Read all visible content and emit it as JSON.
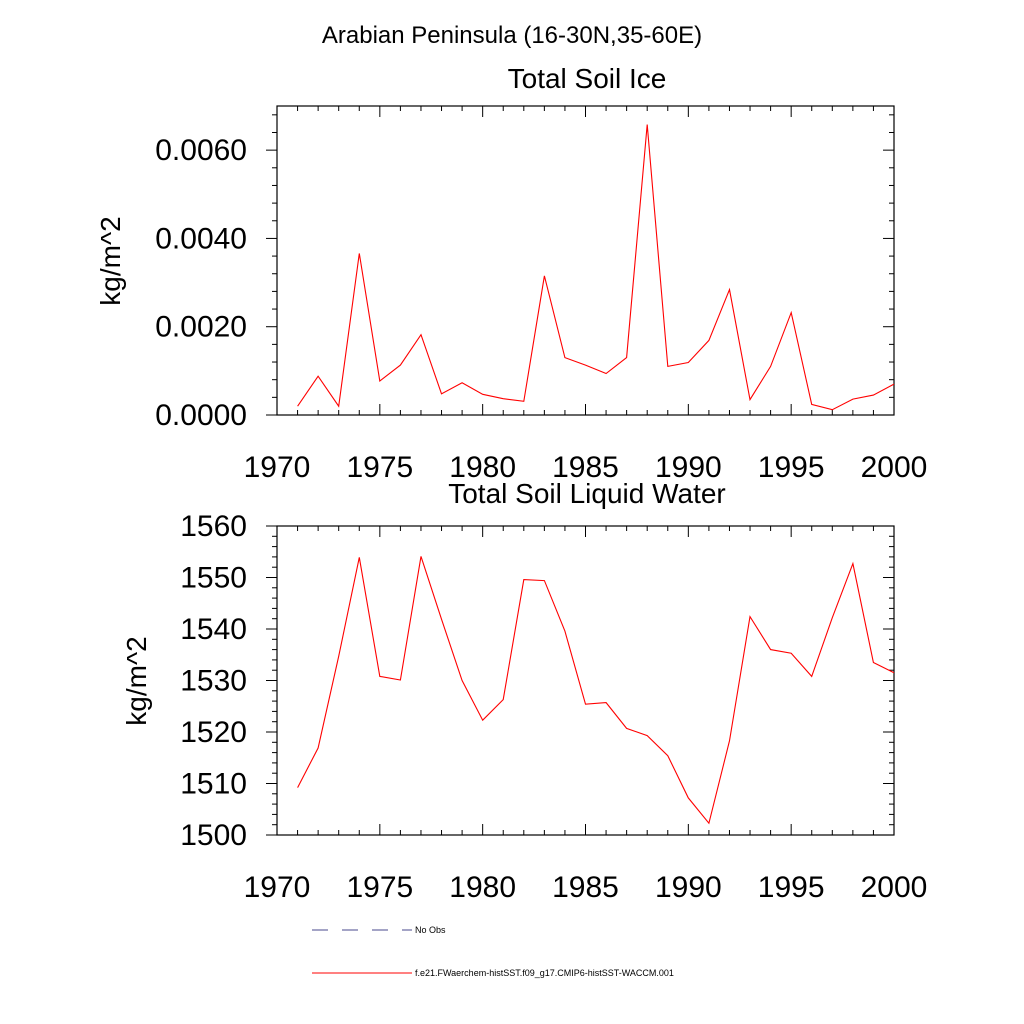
{
  "figure": {
    "title": "Arabian Peninsula (16-30N,35-60E)"
  },
  "chart_data": [
    {
      "type": "line",
      "title": "Total Soil Ice",
      "xlabel": "",
      "ylabel": "kg/m^2",
      "xlim": [
        1970,
        2000
      ],
      "ylim": [
        0.0,
        0.007
      ],
      "x_ticks": [
        1970,
        1975,
        1980,
        1985,
        1990,
        1995,
        2000
      ],
      "x_tick_labels": [
        "1970",
        "1975",
        "1980",
        "1985",
        "1990",
        "1995",
        "2000"
      ],
      "y_ticks": [
        0.0,
        0.002,
        0.004,
        0.006
      ],
      "y_tick_labels": [
        "0.0000",
        "0.0020",
        "0.0040",
        "0.0060"
      ],
      "grid": false,
      "series": [
        {
          "name": "f.e21.FWaerchem-histSST.f09_g17.CMIP6-histSST-WACCM.001",
          "color": "#ff0000",
          "x": [
            1971,
            1972,
            1973,
            1974,
            1975,
            1976,
            1977,
            1978,
            1979,
            1980,
            1981,
            1982,
            1983,
            1984,
            1985,
            1986,
            1987,
            1988,
            1989,
            1990,
            1991,
            1992,
            1993,
            1994,
            1995,
            1996,
            1997,
            1998,
            1999,
            2000
          ],
          "values": [
            0.0002,
            0.00088,
            0.0002,
            0.00366,
            0.00077,
            0.00113,
            0.00182,
            0.00048,
            0.00073,
            0.00047,
            0.00037,
            0.00031,
            0.00315,
            0.0013,
            0.00113,
            0.00094,
            0.0013,
            0.00658,
            0.0011,
            0.00119,
            0.00169,
            0.00284,
            0.00035,
            0.0011,
            0.00232,
            0.00024,
            0.00012,
            0.00036,
            0.00045,
            0.0007
          ]
        }
      ]
    },
    {
      "type": "line",
      "title": "Total Soil Liquid Water",
      "xlabel": "",
      "ylabel": "kg/m^2",
      "xlim": [
        1970,
        2000
      ],
      "ylim": [
        1500,
        1560
      ],
      "x_ticks": [
        1970,
        1975,
        1980,
        1985,
        1990,
        1995,
        2000
      ],
      "x_tick_labels": [
        "1970",
        "1975",
        "1980",
        "1985",
        "1990",
        "1995",
        "2000"
      ],
      "y_ticks": [
        1500,
        1510,
        1520,
        1530,
        1540,
        1550,
        1560
      ],
      "y_tick_labels": [
        "1500",
        "1510",
        "1520",
        "1530",
        "1540",
        "1550",
        "1560"
      ],
      "grid": false,
      "series": [
        {
          "name": "f.e21.FWaerchem-histSST.f09_g17.CMIP6-histSST-WACCM.001",
          "color": "#ff0000",
          "x": [
            1971,
            1972,
            1973,
            1974,
            1975,
            1976,
            1977,
            1978,
            1979,
            1980,
            1981,
            1982,
            1983,
            1984,
            1985,
            1986,
            1987,
            1988,
            1989,
            1990,
            1991,
            1992,
            1993,
            1994,
            1995,
            1996,
            1997,
            1998,
            1999,
            2000
          ],
          "values": [
            1509.2,
            1516.9,
            1534.7,
            1553.9,
            1530.8,
            1530.1,
            1554.1,
            1541.9,
            1530.0,
            1522.3,
            1526.3,
            1549.6,
            1549.4,
            1539.6,
            1525.4,
            1525.7,
            1520.7,
            1519.3,
            1515.4,
            1507.2,
            1502.3,
            1518.3,
            1542.4,
            1536.0,
            1535.3,
            1530.8,
            1542.2,
            1552.7,
            1533.5,
            1531.5
          ]
        }
      ]
    }
  ],
  "legend": {
    "placement": "bottom-left",
    "items": [
      {
        "label": "No Obs",
        "color": "#4a4a8c",
        "style": "dashed"
      },
      {
        "label": "f.e21.FWaerchem-histSST.f09_g17.CMIP6-histSST-WACCM.001",
        "color": "#ff0000",
        "style": "solid"
      }
    ]
  }
}
